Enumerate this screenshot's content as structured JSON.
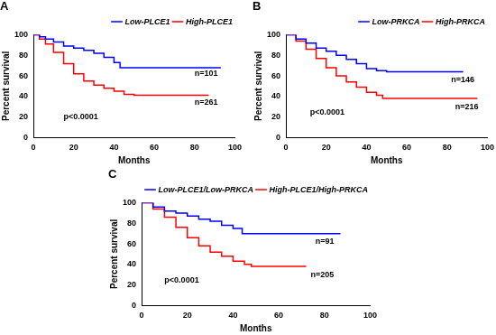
{
  "chart_data": [
    {
      "type": "line",
      "title": "A",
      "xlabel": "Months",
      "ylabel": "Percent survival",
      "xlim": [
        0,
        100
      ],
      "xticks": [
        0,
        20,
        40,
        60,
        80,
        100
      ],
      "ylim": [
        0,
        100
      ],
      "yticks": [
        0,
        20,
        40,
        60,
        80,
        100
      ],
      "grid": false,
      "legend": "top-right",
      "series": [
        {
          "name": "Low-PLCE1",
          "color": "#0000ff",
          "line_style": "step",
          "x": [
            0,
            3,
            6,
            10,
            15,
            20,
            25,
            30,
            35,
            40,
            43,
            93
          ],
          "values": [
            100,
            98,
            96,
            93,
            89,
            87,
            85,
            82,
            78,
            73,
            68,
            68
          ]
        },
        {
          "name": "High-PLCE1",
          "color": "#ff0000",
          "line_style": "step",
          "x": [
            0,
            3,
            6,
            10,
            15,
            20,
            25,
            30,
            35,
            40,
            45,
            50,
            87
          ],
          "values": [
            100,
            96,
            91,
            83,
            72,
            62,
            55,
            51,
            48,
            45,
            42,
            41,
            41
          ]
        }
      ],
      "annotations": [
        {
          "text": "n=101",
          "x": 80,
          "y": 62
        },
        {
          "text": "n=261",
          "x": 80,
          "y": 34
        },
        {
          "text": "p<0.0001",
          "x": 15,
          "y": 20
        }
      ]
    },
    {
      "type": "line",
      "title": "B",
      "xlabel": "Months",
      "ylabel": "Percent survival",
      "xlim": [
        0,
        100
      ],
      "xticks": [
        0,
        20,
        40,
        60,
        80,
        100
      ],
      "ylim": [
        0,
        100
      ],
      "yticks": [
        0,
        20,
        40,
        60,
        80,
        100
      ],
      "grid": false,
      "legend": "top-right",
      "series": [
        {
          "name": "Low-PRKCA",
          "color": "#0000ff",
          "line_style": "step",
          "x": [
            0,
            5,
            10,
            15,
            20,
            25,
            30,
            35,
            40,
            45,
            50,
            88
          ],
          "values": [
            100,
            96,
            92,
            87,
            84,
            80,
            76,
            72,
            67,
            65,
            64,
            64
          ]
        },
        {
          "name": "High-PRKCA",
          "color": "#ff0000",
          "line_style": "step",
          "x": [
            0,
            5,
            10,
            15,
            20,
            25,
            30,
            35,
            40,
            45,
            48,
            95
          ],
          "values": [
            100,
            94,
            86,
            77,
            68,
            60,
            54,
            49,
            44,
            41,
            38,
            38
          ]
        }
      ],
      "annotations": [
        {
          "text": "n=146",
          "x": 82,
          "y": 56
        },
        {
          "text": "n=216",
          "x": 84,
          "y": 30
        },
        {
          "text": "p<0.0001",
          "x": 12,
          "y": 24
        }
      ]
    },
    {
      "type": "line",
      "title": "C",
      "xlabel": "Months",
      "ylabel": "Percent survival",
      "xlim": [
        0,
        100
      ],
      "xticks": [
        0,
        20,
        40,
        60,
        80,
        100
      ],
      "ylim": [
        0,
        100
      ],
      "yticks": [
        0,
        20,
        40,
        60,
        80,
        100
      ],
      "grid": false,
      "legend": "top-right",
      "series": [
        {
          "name": "Low-PLCE1/Low-PRKCA",
          "color": "#0000ff",
          "line_style": "step",
          "x": [
            0,
            5,
            10,
            15,
            20,
            25,
            30,
            35,
            40,
            44,
            87
          ],
          "values": [
            100,
            96,
            92,
            90,
            87,
            84,
            82,
            78,
            75,
            70,
            70
          ]
        },
        {
          "name": "High-PLCE1/High-PRKCA",
          "color": "#ff0000",
          "line_style": "step",
          "x": [
            0,
            5,
            10,
            15,
            20,
            25,
            30,
            35,
            40,
            45,
            48,
            72
          ],
          "values": [
            100,
            94,
            86,
            76,
            66,
            58,
            52,
            48,
            43,
            40,
            38,
            38
          ]
        }
      ],
      "annotations": [
        {
          "text": "n=91",
          "x": 76,
          "y": 62
        },
        {
          "text": "n=205",
          "x": 74,
          "y": 30
        },
        {
          "text": "p<0.0001",
          "x": 10,
          "y": 24
        }
      ]
    }
  ]
}
